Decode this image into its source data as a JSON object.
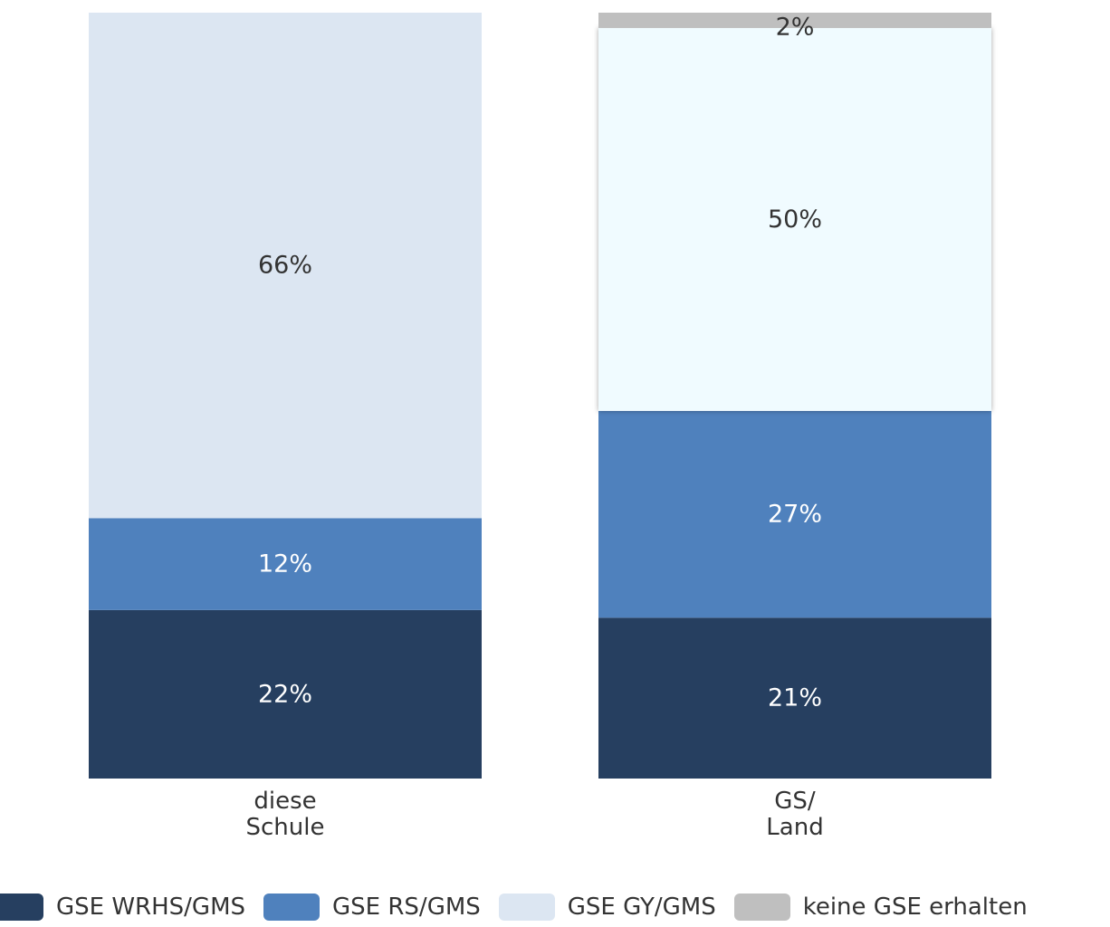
{
  "chart_data": {
    "type": "bar",
    "stacked": true,
    "categories": [
      [
        "diese",
        "Schule"
      ],
      [
        "GS/",
        "Land"
      ]
    ],
    "series": [
      {
        "name": "GSE WRHS/GMS",
        "color": "#263f60",
        "label_color": "#ffffff",
        "values": [
          22,
          21
        ]
      },
      {
        "name": "GSE RS/GMS",
        "color": "#4f81bd",
        "label_color": "#ffffff",
        "values": [
          12,
          27
        ]
      },
      {
        "name": "GSE GY/GMS",
        "color": "#dce6f2",
        "label_color": "#333333",
        "values": [
          66,
          50
        ]
      },
      {
        "name": "keine GSE erhalten",
        "color": "#bfbfbf",
        "label_color": "#333333",
        "values": [
          0,
          2
        ]
      }
    ],
    "highlight": {
      "series_index": 2,
      "category_index": 1,
      "color": "#f0fbff"
    },
    "value_suffix": "%",
    "ylim": [
      0,
      100
    ],
    "legend_position": "bottom"
  }
}
